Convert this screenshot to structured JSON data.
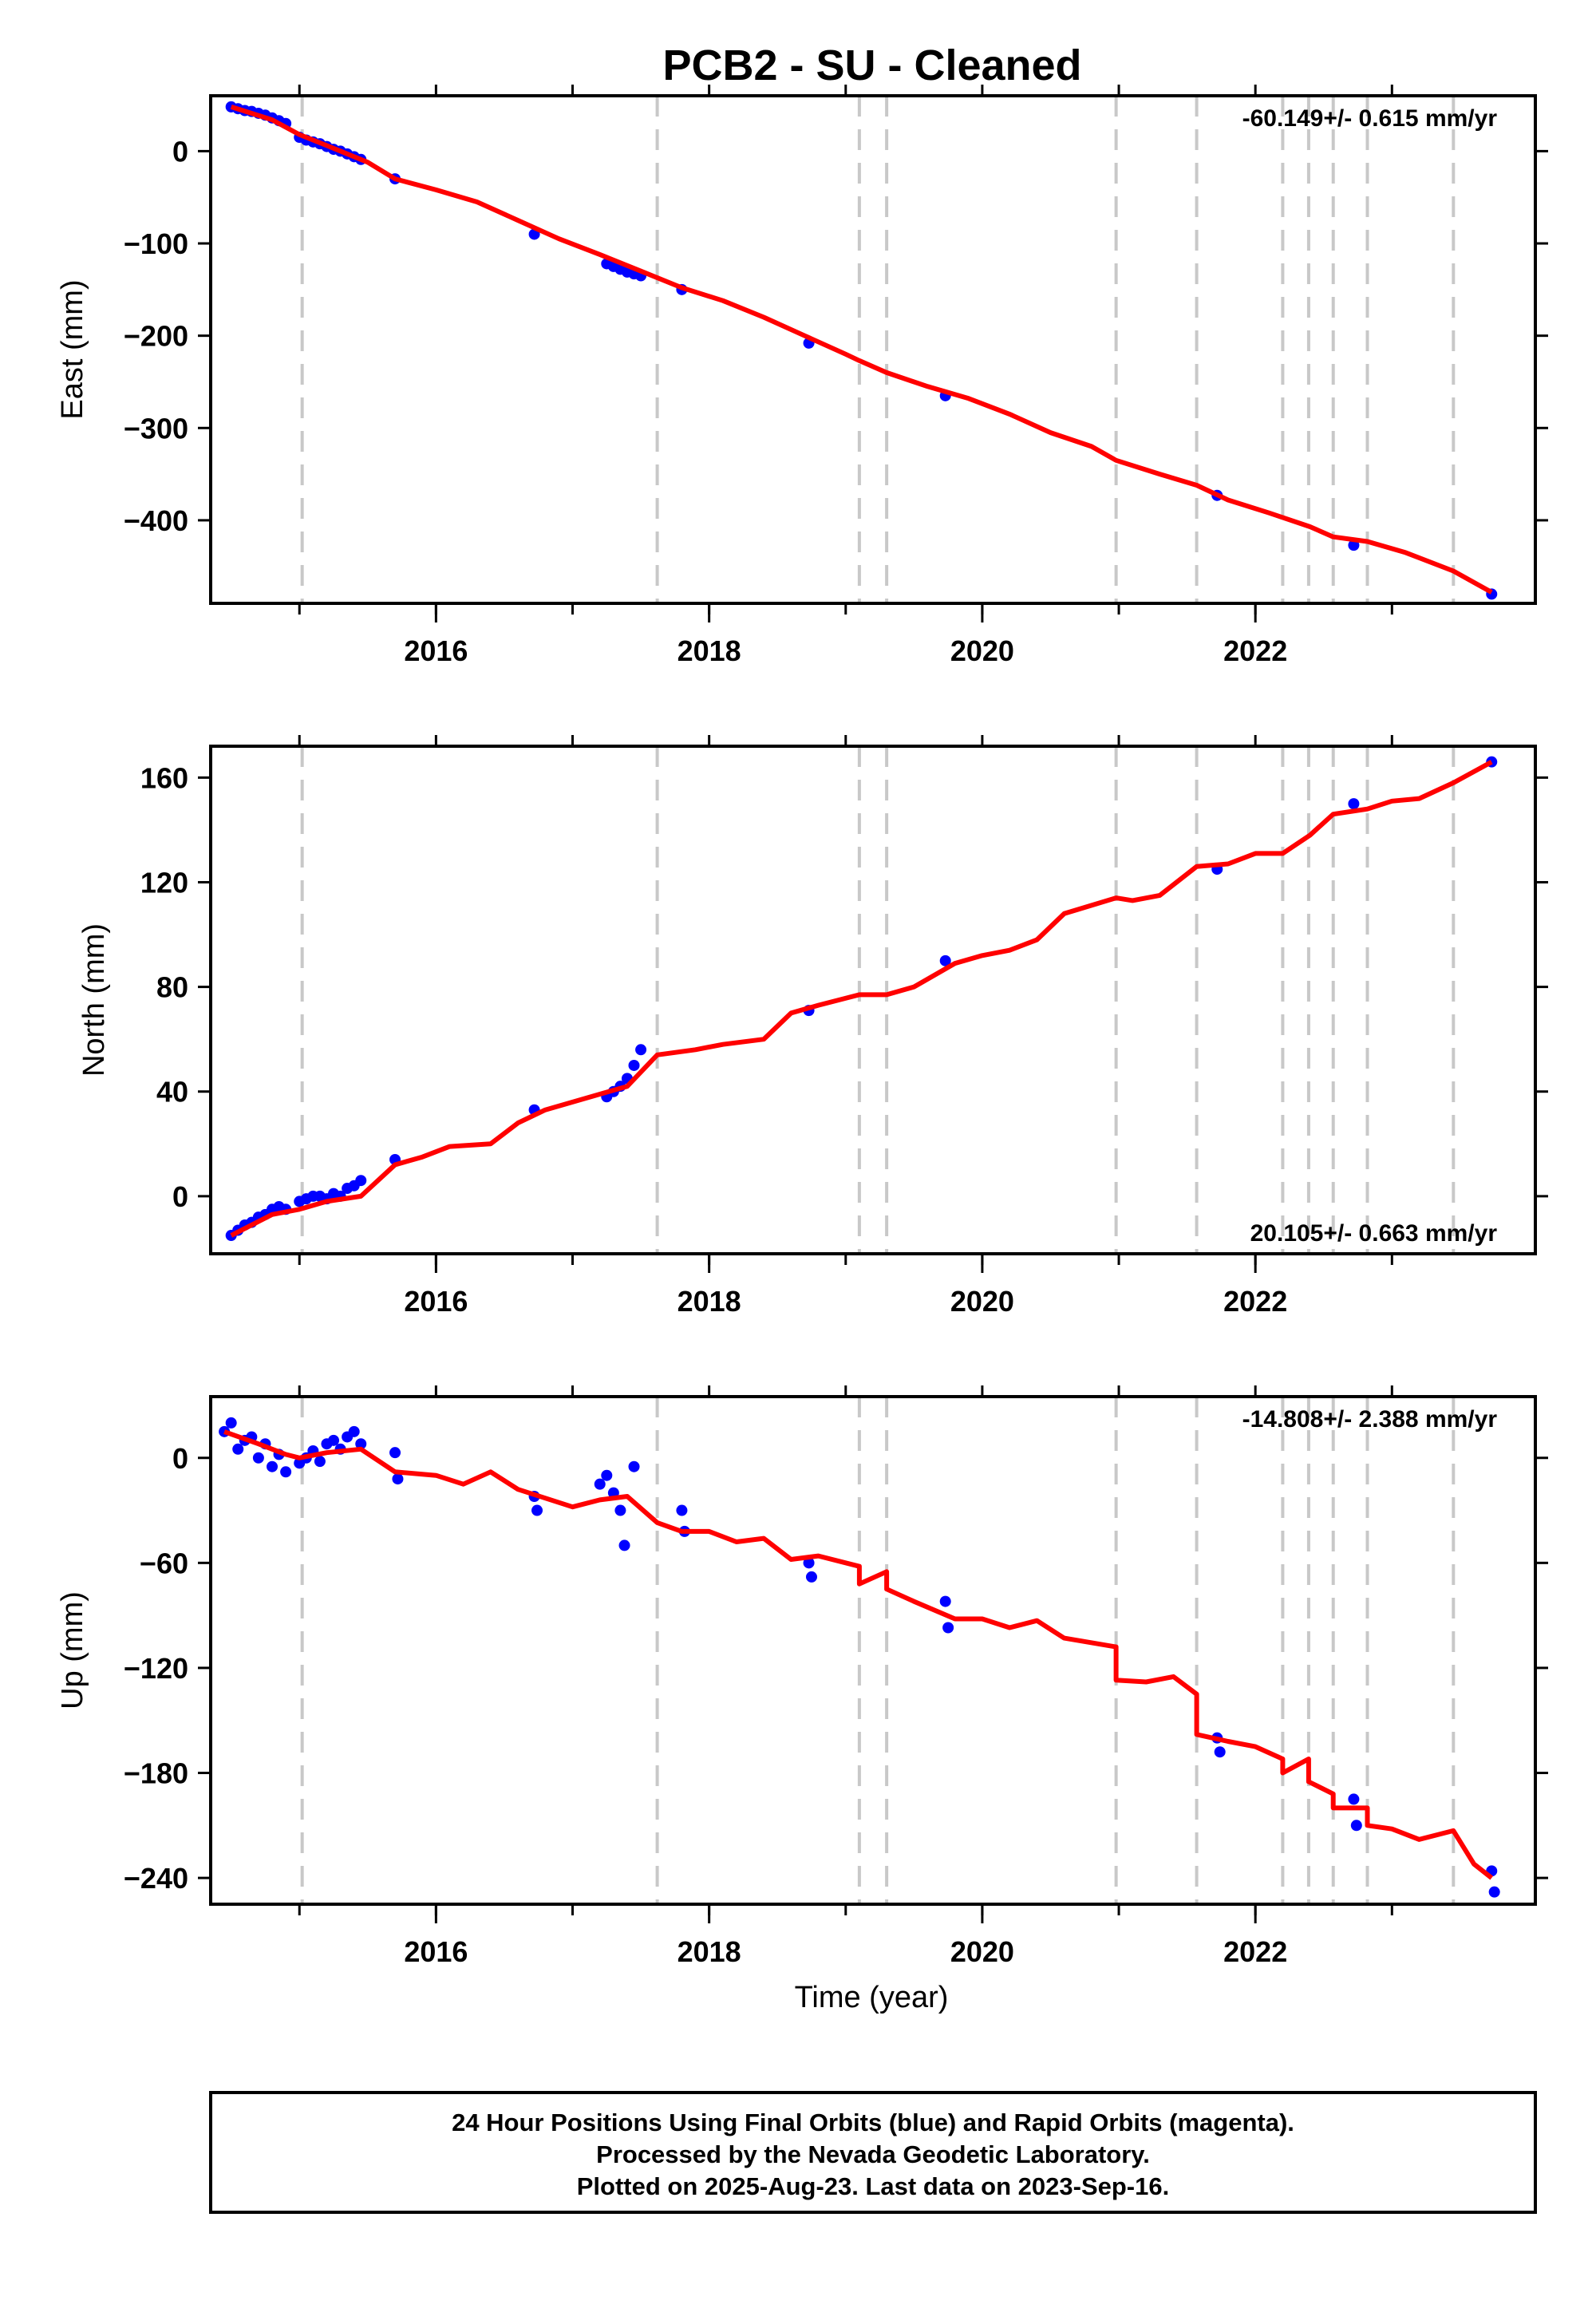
{
  "title": "PCB2  - SU - Cleaned",
  "x_axis": {
    "label": "Time (year)",
    "range": [
      2014.35,
      2024.05
    ],
    "tick_labels": [
      2016,
      2018,
      2020,
      2022
    ],
    "minor_ticks": [
      2015,
      2016,
      2017,
      2018,
      2019,
      2020,
      2021,
      2022,
      2023
    ]
  },
  "colors": {
    "observations": "#0000ff",
    "model": "#ff0000",
    "events": "#c8c8c8",
    "frame": "#000000"
  },
  "event_lines": [
    2015.02,
    2017.62,
    2019.1,
    2019.3,
    2020.98,
    2021.57,
    2022.2,
    2022.39,
    2022.57,
    2022.82,
    2023.45
  ],
  "chart_data": [
    {
      "type": "scatter",
      "component": "east",
      "ylabel": "East (mm)",
      "ylim": [
        -490,
        60
      ],
      "yticks": [
        0,
        -100,
        -200,
        -300,
        -400
      ],
      "rate_label": "-60.149+/- 0.615 mm/yr",
      "rate_position": "top-right",
      "series": [
        {
          "name": "observations",
          "points": [
            [
              2014.5,
              48
            ],
            [
              2014.55,
              46
            ],
            [
              2014.6,
              44
            ],
            [
              2014.65,
              43
            ],
            [
              2014.7,
              41
            ],
            [
              2014.75,
              39
            ],
            [
              2014.8,
              36
            ],
            [
              2014.85,
              33
            ],
            [
              2014.9,
              30
            ],
            [
              2015.0,
              15
            ],
            [
              2015.05,
              12
            ],
            [
              2015.1,
              10
            ],
            [
              2015.15,
              8
            ],
            [
              2015.2,
              5
            ],
            [
              2015.25,
              2
            ],
            [
              2015.3,
              0
            ],
            [
              2015.35,
              -3
            ],
            [
              2015.4,
              -6
            ],
            [
              2015.45,
              -9
            ],
            [
              2015.7,
              -30
            ],
            [
              2016.72,
              -90
            ],
            [
              2017.25,
              -122
            ],
            [
              2017.3,
              -125
            ],
            [
              2017.35,
              -128
            ],
            [
              2017.4,
              -131
            ],
            [
              2017.45,
              -133
            ],
            [
              2017.5,
              -135
            ],
            [
              2017.8,
              -150
            ],
            [
              2018.73,
              -208
            ],
            [
              2019.73,
              -265
            ],
            [
              2021.72,
              -373
            ],
            [
              2022.72,
              -427
            ],
            [
              2023.73,
              -480
            ]
          ]
        },
        {
          "name": "model",
          "points": [
            [
              2014.5,
              48
            ],
            [
              2014.8,
              34
            ],
            [
              2015.0,
              18
            ],
            [
              2015.2,
              6
            ],
            [
              2015.5,
              -12
            ],
            [
              2015.7,
              -30
            ],
            [
              2016.0,
              -42
            ],
            [
              2016.3,
              -55
            ],
            [
              2016.6,
              -75
            ],
            [
              2016.9,
              -95
            ],
            [
              2017.2,
              -112
            ],
            [
              2017.5,
              -130
            ],
            [
              2017.8,
              -148
            ],
            [
              2018.1,
              -162
            ],
            [
              2018.4,
              -180
            ],
            [
              2018.7,
              -200
            ],
            [
              2019.0,
              -220
            ],
            [
              2019.1,
              -227
            ],
            [
              2019.3,
              -240
            ],
            [
              2019.6,
              -255
            ],
            [
              2019.9,
              -268
            ],
            [
              2020.2,
              -285
            ],
            [
              2020.5,
              -305
            ],
            [
              2020.8,
              -320
            ],
            [
              2020.98,
              -335
            ],
            [
              2021.3,
              -350
            ],
            [
              2021.57,
              -362
            ],
            [
              2021.8,
              -378
            ],
            [
              2022.1,
              -392
            ],
            [
              2022.4,
              -407
            ],
            [
              2022.57,
              -418
            ],
            [
              2022.82,
              -423
            ],
            [
              2023.1,
              -435
            ],
            [
              2023.45,
              -455
            ],
            [
              2023.73,
              -478
            ]
          ]
        }
      ]
    },
    {
      "type": "scatter",
      "component": "north",
      "ylabel": "North (mm)",
      "ylim": [
        -22,
        172
      ],
      "yticks": [
        160,
        120,
        80,
        40,
        0
      ],
      "rate_label": "20.105+/- 0.663 mm/yr",
      "rate_position": "bottom-right",
      "series": [
        {
          "name": "observations",
          "points": [
            [
              2014.5,
              -15
            ],
            [
              2014.55,
              -13
            ],
            [
              2014.6,
              -11
            ],
            [
              2014.65,
              -10
            ],
            [
              2014.7,
              -8
            ],
            [
              2014.75,
              -7
            ],
            [
              2014.8,
              -5
            ],
            [
              2014.85,
              -4
            ],
            [
              2014.9,
              -5
            ],
            [
              2015.0,
              -2
            ],
            [
              2015.05,
              -1
            ],
            [
              2015.1,
              0
            ],
            [
              2015.15,
              0
            ],
            [
              2015.2,
              -1
            ],
            [
              2015.25,
              1
            ],
            [
              2015.3,
              0
            ],
            [
              2015.35,
              3
            ],
            [
              2015.4,
              4
            ],
            [
              2015.45,
              6
            ],
            [
              2015.7,
              14
            ],
            [
              2016.72,
              33
            ],
            [
              2017.25,
              38
            ],
            [
              2017.3,
              40
            ],
            [
              2017.35,
              42
            ],
            [
              2017.4,
              45
            ],
            [
              2017.45,
              50
            ],
            [
              2017.5,
              56
            ],
            [
              2018.73,
              71
            ],
            [
              2019.73,
              90
            ],
            [
              2021.72,
              125
            ],
            [
              2022.72,
              150
            ],
            [
              2023.73,
              166
            ]
          ]
        },
        {
          "name": "model",
          "points": [
            [
              2014.5,
              -15
            ],
            [
              2014.8,
              -7
            ],
            [
              2015.0,
              -5
            ],
            [
              2015.2,
              -2
            ],
            [
              2015.45,
              0
            ],
            [
              2015.7,
              12
            ],
            [
              2015.9,
              15
            ],
            [
              2016.1,
              19
            ],
            [
              2016.4,
              20
            ],
            [
              2016.6,
              28
            ],
            [
              2016.8,
              33
            ],
            [
              2017.0,
              36
            ],
            [
              2017.2,
              39
            ],
            [
              2017.4,
              42
            ],
            [
              2017.62,
              54
            ],
            [
              2017.9,
              56
            ],
            [
              2018.1,
              58
            ],
            [
              2018.4,
              60
            ],
            [
              2018.6,
              70
            ],
            [
              2018.8,
              73
            ],
            [
              2019.1,
              77
            ],
            [
              2019.3,
              77
            ],
            [
              2019.5,
              80
            ],
            [
              2019.8,
              89
            ],
            [
              2020.0,
              92
            ],
            [
              2020.2,
              94
            ],
            [
              2020.4,
              98
            ],
            [
              2020.6,
              108
            ],
            [
              2020.98,
              114
            ],
            [
              2021.1,
              113
            ],
            [
              2021.3,
              115
            ],
            [
              2021.57,
              126
            ],
            [
              2021.8,
              127
            ],
            [
              2022.0,
              131
            ],
            [
              2022.2,
              131
            ],
            [
              2022.4,
              138
            ],
            [
              2022.57,
              146
            ],
            [
              2022.82,
              148
            ],
            [
              2023.0,
              151
            ],
            [
              2023.2,
              152
            ],
            [
              2023.45,
              158
            ],
            [
              2023.73,
              166
            ]
          ]
        }
      ]
    },
    {
      "type": "scatter",
      "component": "up",
      "ylabel": "Up (mm)",
      "ylim": [
        -255,
        35
      ],
      "yticks": [
        0,
        -60,
        -120,
        -180,
        -240
      ],
      "rate_label": "-14.808+/- 2.388 mm/yr",
      "rate_position": "top-right",
      "series": [
        {
          "name": "observations",
          "points": [
            [
              2014.45,
              15
            ],
            [
              2014.5,
              20
            ],
            [
              2014.55,
              5
            ],
            [
              2014.6,
              10
            ],
            [
              2014.65,
              12
            ],
            [
              2014.7,
              0
            ],
            [
              2014.75,
              8
            ],
            [
              2014.8,
              -5
            ],
            [
              2014.85,
              2
            ],
            [
              2014.9,
              -8
            ],
            [
              2015.0,
              -3
            ],
            [
              2015.05,
              0
            ],
            [
              2015.1,
              4
            ],
            [
              2015.15,
              -2
            ],
            [
              2015.2,
              8
            ],
            [
              2015.25,
              10
            ],
            [
              2015.3,
              5
            ],
            [
              2015.35,
              12
            ],
            [
              2015.4,
              15
            ],
            [
              2015.45,
              8
            ],
            [
              2015.7,
              3
            ],
            [
              2015.72,
              -12
            ],
            [
              2016.72,
              -22
            ],
            [
              2016.74,
              -30
            ],
            [
              2017.2,
              -15
            ],
            [
              2017.25,
              -10
            ],
            [
              2017.3,
              -20
            ],
            [
              2017.35,
              -30
            ],
            [
              2017.38,
              -50
            ],
            [
              2017.45,
              -5
            ],
            [
              2017.8,
              -30
            ],
            [
              2017.82,
              -42
            ],
            [
              2018.73,
              -60
            ],
            [
              2018.75,
              -68
            ],
            [
              2019.73,
              -82
            ],
            [
              2019.75,
              -97
            ],
            [
              2021.72,
              -160
            ],
            [
              2021.74,
              -168
            ],
            [
              2022.72,
              -195
            ],
            [
              2022.74,
              -210
            ],
            [
              2023.73,
              -236
            ],
            [
              2023.75,
              -248
            ]
          ]
        },
        {
          "name": "model",
          "points": [
            [
              2014.45,
              15
            ],
            [
              2014.7,
              8
            ],
            [
              2014.9,
              2
            ],
            [
              2015.0,
              0
            ],
            [
              2015.2,
              3
            ],
            [
              2015.45,
              5
            ],
            [
              2015.7,
              -8
            ],
            [
              2016.0,
              -10
            ],
            [
              2016.2,
              -15
            ],
            [
              2016.4,
              -8
            ],
            [
              2016.6,
              -18
            ],
            [
              2016.8,
              -23
            ],
            [
              2017.0,
              -28
            ],
            [
              2017.2,
              -24
            ],
            [
              2017.4,
              -22
            ],
            [
              2017.62,
              -37
            ],
            [
              2017.8,
              -42
            ],
            [
              2018.0,
              -42
            ],
            [
              2018.2,
              -48
            ],
            [
              2018.4,
              -46
            ],
            [
              2018.6,
              -58
            ],
            [
              2018.8,
              -56
            ],
            [
              2019.1,
              -62
            ],
            [
              2019.1,
              -72
            ],
            [
              2019.3,
              -65
            ],
            [
              2019.3,
              -75
            ],
            [
              2019.5,
              -82
            ],
            [
              2019.8,
              -92
            ],
            [
              2020.0,
              -92
            ],
            [
              2020.2,
              -97
            ],
            [
              2020.4,
              -93
            ],
            [
              2020.6,
              -103
            ],
            [
              2020.98,
              -108
            ],
            [
              2020.98,
              -127
            ],
            [
              2021.2,
              -128
            ],
            [
              2021.4,
              -125
            ],
            [
              2021.57,
              -135
            ],
            [
              2021.57,
              -158
            ],
            [
              2021.8,
              -162
            ],
            [
              2022.0,
              -165
            ],
            [
              2022.2,
              -172
            ],
            [
              2022.2,
              -180
            ],
            [
              2022.39,
              -172
            ],
            [
              2022.39,
              -185
            ],
            [
              2022.57,
              -192
            ],
            [
              2022.57,
              -200
            ],
            [
              2022.82,
              -200
            ],
            [
              2022.82,
              -210
            ],
            [
              2023.0,
              -212
            ],
            [
              2023.2,
              -218
            ],
            [
              2023.45,
              -213
            ],
            [
              2023.6,
              -232
            ],
            [
              2023.73,
              -240
            ]
          ]
        }
      ]
    }
  ],
  "footer": {
    "line1": "24 Hour Positions Using Final Orbits (blue) and Rapid Orbits (magenta).",
    "line2": "Processed by the Nevada Geodetic Laboratory.",
    "line3": "Plotted on 2025-Aug-23. Last data on 2023-Sep-16."
  }
}
